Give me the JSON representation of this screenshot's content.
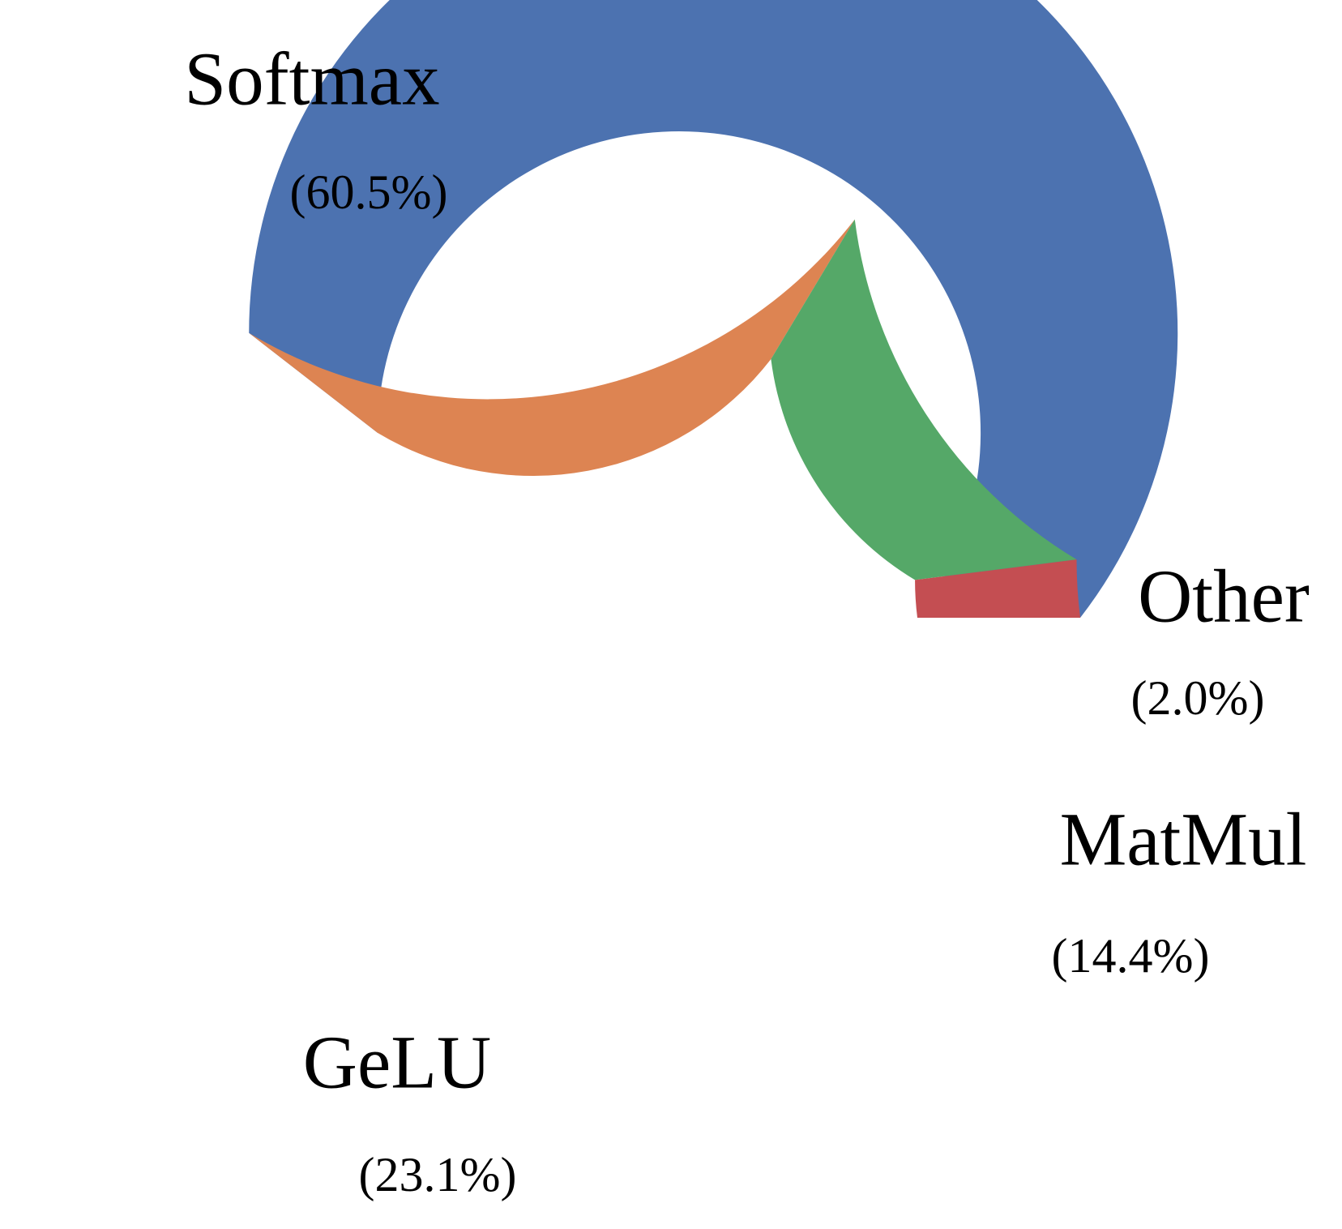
{
  "chart_data": {
    "type": "pie",
    "variant": "donut",
    "title": "",
    "legend": "none",
    "slices": [
      {
        "name": "Softmax",
        "value": 60.5,
        "label": "(60.5%)",
        "color": "#4C72B0"
      },
      {
        "name": "GeLU",
        "value": 23.1,
        "label": "(23.1%)",
        "color": "#DD8452"
      },
      {
        "name": "MatMul",
        "value": 14.4,
        "label": "(14.4%)",
        "color": "#55A868"
      },
      {
        "name": "Other",
        "value": 2.0,
        "label": "(2.0%)",
        "color": "#C44E52"
      }
    ]
  }
}
